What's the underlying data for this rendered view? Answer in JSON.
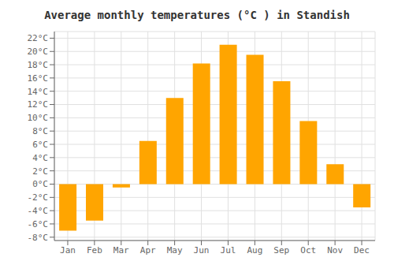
{
  "chart_data": {
    "type": "bar",
    "title": "Average monthly temperatures (°C ) in Standish",
    "categories": [
      "Jan",
      "Feb",
      "Mar",
      "Apr",
      "May",
      "Jun",
      "Jul",
      "Aug",
      "Sep",
      "Oct",
      "Nov",
      "Dec"
    ],
    "values": [
      -7.0,
      -5.5,
      -0.5,
      6.5,
      13.0,
      18.2,
      21.0,
      19.5,
      15.5,
      9.5,
      3.0,
      -3.5
    ],
    "color": "#FFA500",
    "ylim": [
      -8.5,
      23
    ],
    "yticks": [
      {
        "value": -8,
        "label": "-8°C"
      },
      {
        "value": -6,
        "label": "-6°C"
      },
      {
        "value": -4,
        "label": "-4°C"
      },
      {
        "value": -2,
        "label": "-2°C"
      },
      {
        "value": 0,
        "label": "0°C"
      },
      {
        "value": 2,
        "label": "2°C"
      },
      {
        "value": 4,
        "label": "4°C"
      },
      {
        "value": 6,
        "label": "6°C"
      },
      {
        "value": 8,
        "label": "8°C"
      },
      {
        "value": 10,
        "label": "10°C"
      },
      {
        "value": 12,
        "label": "12°C"
      },
      {
        "value": 14,
        "label": "14°C"
      },
      {
        "value": 16,
        "label": "16°C"
      },
      {
        "value": 18,
        "label": "18°C"
      },
      {
        "value": 20,
        "label": "20°C"
      },
      {
        "value": 22,
        "label": "22°C"
      }
    ],
    "grid": true
  }
}
